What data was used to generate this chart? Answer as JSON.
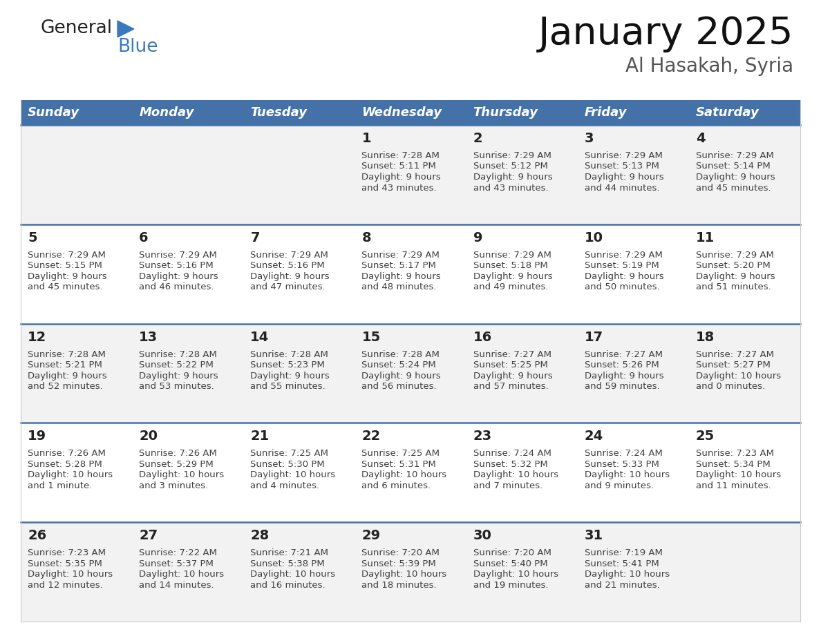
{
  "title": "January 2025",
  "subtitle": "Al Hasakah, Syria",
  "header_color": "#4472a8",
  "header_text_color": "#ffffff",
  "weekdays": [
    "Sunday",
    "Monday",
    "Tuesday",
    "Wednesday",
    "Thursday",
    "Friday",
    "Saturday"
  ],
  "row_bg_colors": [
    "#f2f2f2",
    "#ffffff"
  ],
  "divider_color": "#4472a8",
  "text_color": "#404040",
  "day_num_color": "#222222",
  "calendar": [
    [
      {
        "day": "",
        "sunrise": "",
        "sunset": "",
        "daylight": ""
      },
      {
        "day": "",
        "sunrise": "",
        "sunset": "",
        "daylight": ""
      },
      {
        "day": "",
        "sunrise": "",
        "sunset": "",
        "daylight": ""
      },
      {
        "day": "1",
        "sunrise": "7:28 AM",
        "sunset": "5:11 PM",
        "daylight": "9 hours",
        "daylight2": "and 43 minutes."
      },
      {
        "day": "2",
        "sunrise": "7:29 AM",
        "sunset": "5:12 PM",
        "daylight": "9 hours",
        "daylight2": "and 43 minutes."
      },
      {
        "day": "3",
        "sunrise": "7:29 AM",
        "sunset": "5:13 PM",
        "daylight": "9 hours",
        "daylight2": "and 44 minutes."
      },
      {
        "day": "4",
        "sunrise": "7:29 AM",
        "sunset": "5:14 PM",
        "daylight": "9 hours",
        "daylight2": "and 45 minutes."
      }
    ],
    [
      {
        "day": "5",
        "sunrise": "7:29 AM",
        "sunset": "5:15 PM",
        "daylight": "9 hours",
        "daylight2": "and 45 minutes."
      },
      {
        "day": "6",
        "sunrise": "7:29 AM",
        "sunset": "5:16 PM",
        "daylight": "9 hours",
        "daylight2": "and 46 minutes."
      },
      {
        "day": "7",
        "sunrise": "7:29 AM",
        "sunset": "5:16 PM",
        "daylight": "9 hours",
        "daylight2": "and 47 minutes."
      },
      {
        "day": "8",
        "sunrise": "7:29 AM",
        "sunset": "5:17 PM",
        "daylight": "9 hours",
        "daylight2": "and 48 minutes."
      },
      {
        "day": "9",
        "sunrise": "7:29 AM",
        "sunset": "5:18 PM",
        "daylight": "9 hours",
        "daylight2": "and 49 minutes."
      },
      {
        "day": "10",
        "sunrise": "7:29 AM",
        "sunset": "5:19 PM",
        "daylight": "9 hours",
        "daylight2": "and 50 minutes."
      },
      {
        "day": "11",
        "sunrise": "7:29 AM",
        "sunset": "5:20 PM",
        "daylight": "9 hours",
        "daylight2": "and 51 minutes."
      }
    ],
    [
      {
        "day": "12",
        "sunrise": "7:28 AM",
        "sunset": "5:21 PM",
        "daylight": "9 hours",
        "daylight2": "and 52 minutes."
      },
      {
        "day": "13",
        "sunrise": "7:28 AM",
        "sunset": "5:22 PM",
        "daylight": "9 hours",
        "daylight2": "and 53 minutes."
      },
      {
        "day": "14",
        "sunrise": "7:28 AM",
        "sunset": "5:23 PM",
        "daylight": "9 hours",
        "daylight2": "and 55 minutes."
      },
      {
        "day": "15",
        "sunrise": "7:28 AM",
        "sunset": "5:24 PM",
        "daylight": "9 hours",
        "daylight2": "and 56 minutes."
      },
      {
        "day": "16",
        "sunrise": "7:27 AM",
        "sunset": "5:25 PM",
        "daylight": "9 hours",
        "daylight2": "and 57 minutes."
      },
      {
        "day": "17",
        "sunrise": "7:27 AM",
        "sunset": "5:26 PM",
        "daylight": "9 hours",
        "daylight2": "and 59 minutes."
      },
      {
        "day": "18",
        "sunrise": "7:27 AM",
        "sunset": "5:27 PM",
        "daylight": "10 hours",
        "daylight2": "and 0 minutes."
      }
    ],
    [
      {
        "day": "19",
        "sunrise": "7:26 AM",
        "sunset": "5:28 PM",
        "daylight": "10 hours",
        "daylight2": "and 1 minute."
      },
      {
        "day": "20",
        "sunrise": "7:26 AM",
        "sunset": "5:29 PM",
        "daylight": "10 hours",
        "daylight2": "and 3 minutes."
      },
      {
        "day": "21",
        "sunrise": "7:25 AM",
        "sunset": "5:30 PM",
        "daylight": "10 hours",
        "daylight2": "and 4 minutes."
      },
      {
        "day": "22",
        "sunrise": "7:25 AM",
        "sunset": "5:31 PM",
        "daylight": "10 hours",
        "daylight2": "and 6 minutes."
      },
      {
        "day": "23",
        "sunrise": "7:24 AM",
        "sunset": "5:32 PM",
        "daylight": "10 hours",
        "daylight2": "and 7 minutes."
      },
      {
        "day": "24",
        "sunrise": "7:24 AM",
        "sunset": "5:33 PM",
        "daylight": "10 hours",
        "daylight2": "and 9 minutes."
      },
      {
        "day": "25",
        "sunrise": "7:23 AM",
        "sunset": "5:34 PM",
        "daylight": "10 hours",
        "daylight2": "and 11 minutes."
      }
    ],
    [
      {
        "day": "26",
        "sunrise": "7:23 AM",
        "sunset": "5:35 PM",
        "daylight": "10 hours",
        "daylight2": "and 12 minutes."
      },
      {
        "day": "27",
        "sunrise": "7:22 AM",
        "sunset": "5:37 PM",
        "daylight": "10 hours",
        "daylight2": "and 14 minutes."
      },
      {
        "day": "28",
        "sunrise": "7:21 AM",
        "sunset": "5:38 PM",
        "daylight": "10 hours",
        "daylight2": "and 16 minutes."
      },
      {
        "day": "29",
        "sunrise": "7:20 AM",
        "sunset": "5:39 PM",
        "daylight": "10 hours",
        "daylight2": "and 18 minutes."
      },
      {
        "day": "30",
        "sunrise": "7:20 AM",
        "sunset": "5:40 PM",
        "daylight": "10 hours",
        "daylight2": "and 19 minutes."
      },
      {
        "day": "31",
        "sunrise": "7:19 AM",
        "sunset": "5:41 PM",
        "daylight": "10 hours",
        "daylight2": "and 21 minutes."
      },
      {
        "day": "",
        "sunrise": "",
        "sunset": "",
        "daylight": "",
        "daylight2": ""
      }
    ]
  ]
}
